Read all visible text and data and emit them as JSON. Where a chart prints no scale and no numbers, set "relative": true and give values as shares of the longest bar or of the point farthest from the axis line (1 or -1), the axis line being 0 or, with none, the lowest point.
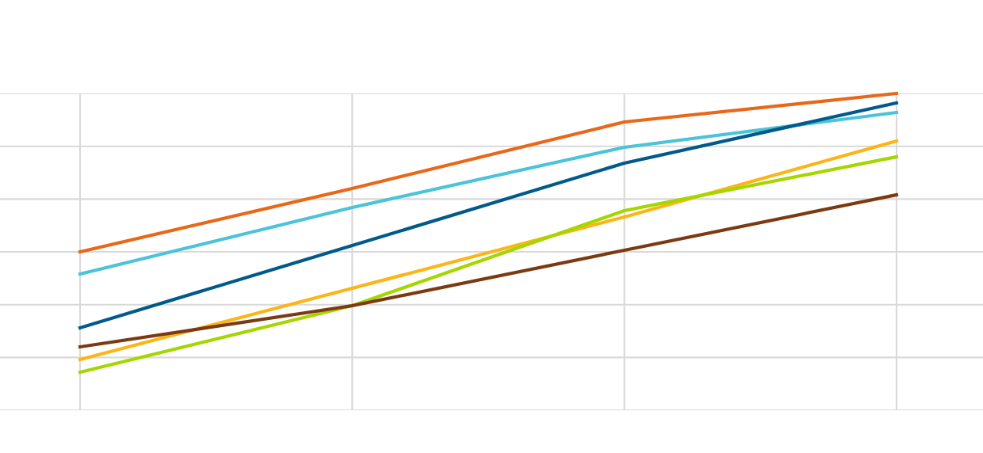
{
  "chart_data": {
    "type": "line",
    "relative": true,
    "grid": true,
    "legend": false,
    "marker": "none",
    "line_style": "solid",
    "categories": [
      null,
      null,
      null,
      null
    ],
    "series": [
      {
        "color": "#e8681a",
        "values": [
          0.5,
          0.7,
          0.91,
          1.0
        ]
      },
      {
        "color": "#4bc3d9",
        "values": [
          0.43,
          0.64,
          0.83,
          0.94
        ]
      },
      {
        "color": "#005a8b",
        "values": [
          0.26,
          0.52,
          0.78,
          0.97
        ]
      },
      {
        "color": "#fbb516",
        "values": [
          0.16,
          0.385,
          0.61,
          0.85
        ]
      },
      {
        "color": "#a5d600",
        "values": [
          0.12,
          0.33,
          0.63,
          0.8
        ]
      },
      {
        "color": "#7b3a12",
        "values": [
          0.2,
          0.33,
          0.505,
          0.68
        ]
      }
    ]
  }
}
